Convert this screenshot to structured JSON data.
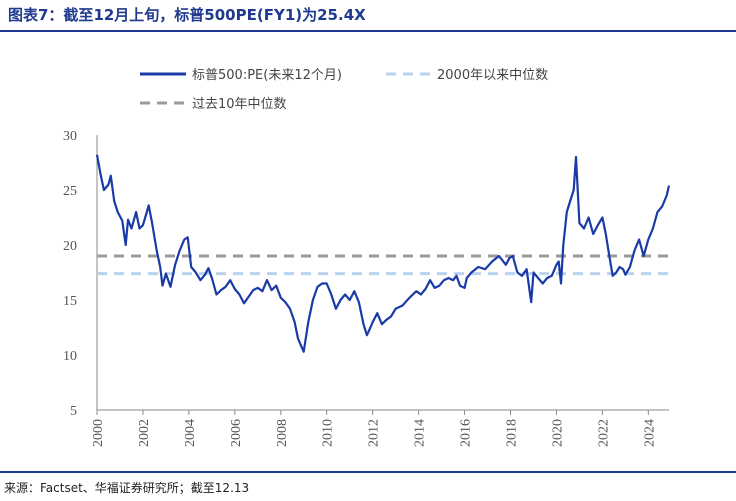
{
  "title": "图表7：截至12月上旬，标普500PE(FY1)为25.4X",
  "source": "来源：Factset、华福证券研究所；截至12.13",
  "colors": {
    "primary": "#1f3a8f",
    "series_line": "#1a3aa8",
    "median_2000": "#b9d2f0",
    "median_10y": "#9a9a9a",
    "axis": "#8a8a8a"
  },
  "chart_data": {
    "type": "line",
    "title": "",
    "xlabel": "",
    "ylabel": "",
    "ylim": [
      5,
      30
    ],
    "yticks": [
      5,
      10,
      15,
      20,
      25,
      30
    ],
    "xlim": [
      2000,
      2024.9
    ],
    "xticks": [
      "2000",
      "2002",
      "2004",
      "2006",
      "2008",
      "2010",
      "2012",
      "2014",
      "2016",
      "2018",
      "2020",
      "2022",
      "2024"
    ],
    "legend_position": "top",
    "series": [
      {
        "name": "标普500:PE(未来12个月)",
        "style": "solid",
        "x": [
          2000.0,
          2000.15,
          2000.3,
          2000.5,
          2000.6,
          2000.75,
          2000.9,
          2001.1,
          2001.25,
          2001.35,
          2001.5,
          2001.7,
          2001.85,
          2002.0,
          2002.1,
          2002.25,
          2002.4,
          2002.6,
          2002.75,
          2002.85,
          2003.0,
          2003.2,
          2003.4,
          2003.6,
          2003.8,
          2003.95,
          2004.1,
          2004.3,
          2004.5,
          2004.7,
          2004.85,
          2005.0,
          2005.2,
          2005.4,
          2005.6,
          2005.8,
          2006.0,
          2006.2,
          2006.4,
          2006.6,
          2006.8,
          2007.0,
          2007.2,
          2007.4,
          2007.6,
          2007.8,
          2008.0,
          2008.2,
          2008.4,
          2008.6,
          2008.75,
          2008.85,
          2009.0,
          2009.2,
          2009.4,
          2009.6,
          2009.8,
          2010.0,
          2010.2,
          2010.4,
          2010.6,
          2010.8,
          2011.0,
          2011.2,
          2011.4,
          2011.6,
          2011.75,
          2011.9,
          2012.0,
          2012.2,
          2012.4,
          2012.6,
          2012.8,
          2013.0,
          2013.3,
          2013.6,
          2013.9,
          2014.1,
          2014.3,
          2014.5,
          2014.7,
          2014.9,
          2015.1,
          2015.3,
          2015.5,
          2015.65,
          2015.8,
          2016.0,
          2016.1,
          2016.3,
          2016.6,
          2016.9,
          2017.2,
          2017.5,
          2017.8,
          2017.95,
          2018.1,
          2018.3,
          2018.5,
          2018.7,
          2018.9,
          2019.0,
          2019.2,
          2019.4,
          2019.6,
          2019.8,
          2020.0,
          2020.1,
          2020.2,
          2020.3,
          2020.45,
          2020.6,
          2020.75,
          2020.85,
          2021.0,
          2021.2,
          2021.4,
          2021.6,
          2021.8,
          2022.0,
          2022.15,
          2022.3,
          2022.45,
          2022.6,
          2022.75,
          2022.9,
          2023.0,
          2023.2,
          2023.4,
          2023.6,
          2023.8,
          2024.0,
          2024.2,
          2024.4,
          2024.6,
          2024.8,
          2024.9
        ],
        "values": [
          28.2,
          26.5,
          25.0,
          25.5,
          26.3,
          24.0,
          23.0,
          22.2,
          20.0,
          22.3,
          21.5,
          23.0,
          21.5,
          21.8,
          22.5,
          23.6,
          22.0,
          19.5,
          18.0,
          16.3,
          17.4,
          16.2,
          18.2,
          19.5,
          20.5,
          20.7,
          18.0,
          17.5,
          16.8,
          17.3,
          17.9,
          17.0,
          15.5,
          15.9,
          16.2,
          16.8,
          16.0,
          15.5,
          14.7,
          15.3,
          15.9,
          16.1,
          15.8,
          16.8,
          15.9,
          16.3,
          15.2,
          14.8,
          14.2,
          13.0,
          11.5,
          11.0,
          10.3,
          13.0,
          15.0,
          16.2,
          16.5,
          16.5,
          15.5,
          14.2,
          15.0,
          15.5,
          15.0,
          15.8,
          14.8,
          12.8,
          11.8,
          12.5,
          13.0,
          13.8,
          12.8,
          13.2,
          13.5,
          14.2,
          14.5,
          15.2,
          15.8,
          15.5,
          16.0,
          16.8,
          16.1,
          16.3,
          16.8,
          17.0,
          16.8,
          17.2,
          16.3,
          16.1,
          17.0,
          17.5,
          18.0,
          17.8,
          18.5,
          19.0,
          18.2,
          18.8,
          19.0,
          17.5,
          17.2,
          17.8,
          14.8,
          17.5,
          17.0,
          16.5,
          17.0,
          17.2,
          18.2,
          18.5,
          16.5,
          20.0,
          23.0,
          24.0,
          25.0,
          28.0,
          22.0,
          21.5,
          22.5,
          21.0,
          21.8,
          22.5,
          21.0,
          19.0,
          17.2,
          17.5,
          18.0,
          17.8,
          17.3,
          18.0,
          19.5,
          20.5,
          19.0,
          20.5,
          21.5,
          23.0,
          23.5,
          24.5,
          25.4
        ],
        "notes": ""
      },
      {
        "name": "2000年以来中位数",
        "style": "dashed",
        "constant": 17.4
      },
      {
        "name": "过去10年中位数",
        "style": "dashed",
        "constant": 19.0
      }
    ]
  }
}
